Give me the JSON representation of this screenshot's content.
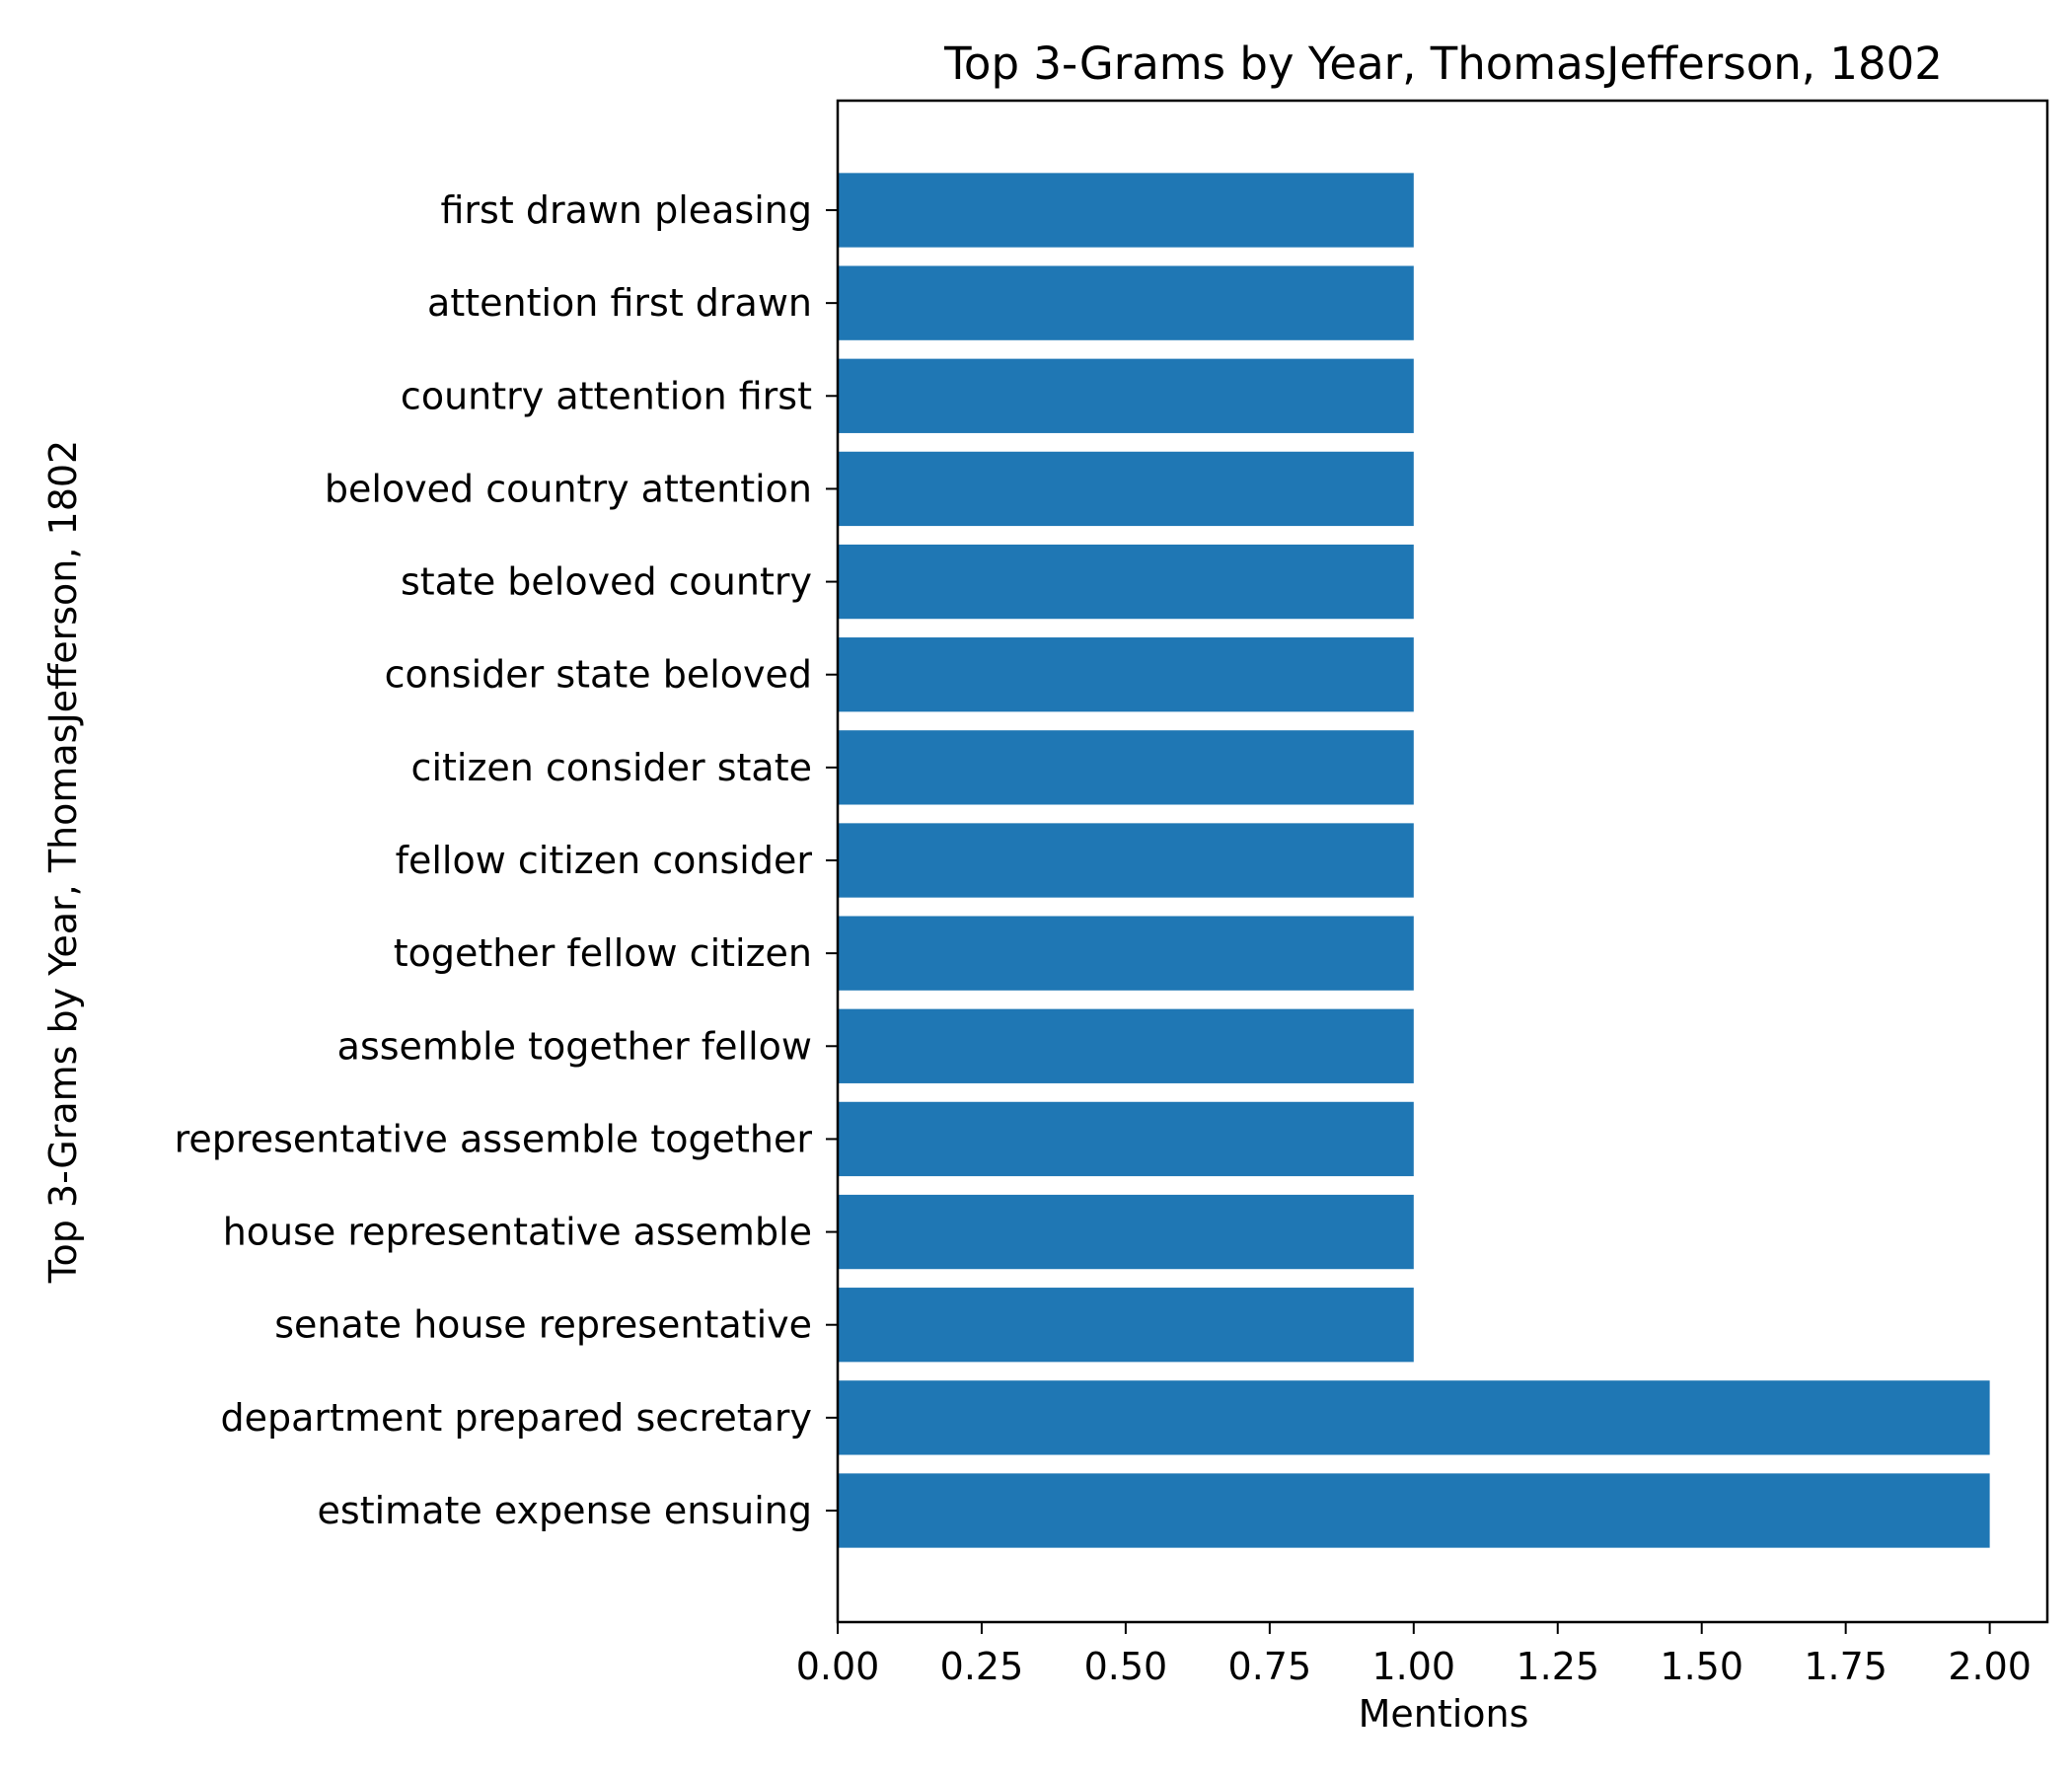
{
  "chart_data": {
    "type": "bar",
    "orientation": "horizontal",
    "title": "Top 3-Grams by Year, ThomasJefferson, 1802",
    "xlabel": "Mentions",
    "ylabel": "Top 3-Grams by Year, ThomasJefferson, 1802",
    "xlim": [
      0,
      2.1
    ],
    "xticks": [
      "0.00",
      "0.25",
      "0.50",
      "0.75",
      "1.00",
      "1.25",
      "1.50",
      "1.75",
      "2.00"
    ],
    "grid": false,
    "bar_color": "#1f77b4",
    "categories": [
      "estimate expense ensuing",
      "department prepared secretary",
      "senate house representative",
      "house representative assemble",
      "representative assemble together",
      "assemble together fellow",
      "together fellow citizen",
      "fellow citizen consider",
      "citizen consider state",
      "consider state beloved",
      "state beloved country",
      "beloved country attention",
      "country attention first",
      "attention first drawn",
      "first drawn pleasing"
    ],
    "values": [
      2,
      2,
      1,
      1,
      1,
      1,
      1,
      1,
      1,
      1,
      1,
      1,
      1,
      1,
      1
    ]
  }
}
